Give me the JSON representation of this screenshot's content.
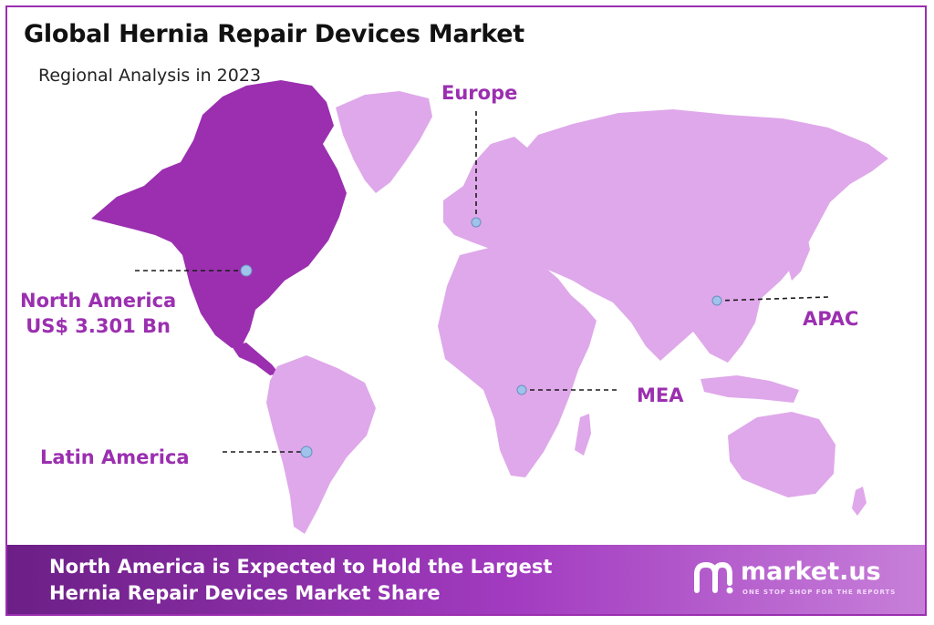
{
  "header": {
    "title": "Global Hernia Repair Devices Market",
    "subtitle": "Regional Analysis in 2023"
  },
  "colors": {
    "highlight_region": "#9b2fb0",
    "other_regions": "#dfa8ea",
    "label_text": "#9b2fb0",
    "marker": "#9fc3ea",
    "banner_start": "#6c1f86",
    "banner_end": "#c77fd9"
  },
  "regions": {
    "europe": {
      "label": "Europe"
    },
    "north_america": {
      "label": "North America",
      "value": "US$ 3.301 Bn",
      "highlighted": true
    },
    "apac": {
      "label": "APAC"
    },
    "mea": {
      "label": "MEA"
    },
    "latin_america": {
      "label": "Latin America"
    }
  },
  "banner": {
    "line1": "North America  is Expected to Hold the Largest",
    "line2": "Hernia Repair Devices Market Share"
  },
  "brand": {
    "name": "market.us",
    "tagline": "ONE STOP SHOP FOR THE REPORTS"
  }
}
